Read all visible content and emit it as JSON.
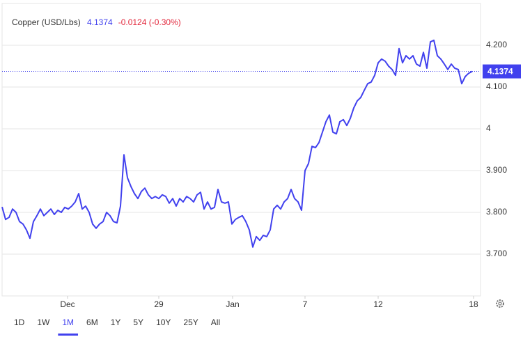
{
  "chart_data": {
    "type": "line",
    "title": "Copper (USD/Lbs)",
    "quote": {
      "price": "4.1374",
      "change": "-0.0124 (-0.30%)"
    },
    "x": [
      0,
      1,
      2,
      3,
      4,
      5,
      6,
      7,
      8,
      9,
      10,
      11,
      12,
      13,
      14,
      15,
      16,
      17,
      18,
      19,
      20,
      21,
      22,
      23,
      24,
      25,
      26,
      27,
      28,
      29,
      30,
      31,
      32,
      33,
      34,
      35,
      36,
      37,
      38,
      39,
      40,
      41,
      42,
      43,
      44,
      45,
      46,
      47,
      48,
      49,
      50,
      51,
      52,
      53,
      54,
      55,
      56,
      57,
      58,
      59,
      60,
      61,
      62,
      63,
      64,
      65,
      66,
      67,
      68,
      69,
      70,
      71,
      72,
      73,
      74,
      75,
      76,
      77,
      78,
      79,
      80,
      81,
      82,
      83,
      84,
      85,
      86,
      87,
      88,
      89,
      90,
      91,
      92,
      93,
      94,
      95,
      96,
      97,
      98,
      99,
      100,
      101,
      102,
      103,
      104,
      105,
      106,
      107,
      108,
      109,
      110,
      111,
      112,
      113,
      114,
      115,
      116,
      117,
      118,
      119,
      120,
      121,
      122,
      123,
      124,
      125,
      126,
      127,
      128,
      129,
      130,
      131,
      132,
      133,
      134,
      135
    ],
    "series": [
      {
        "name": "Copper",
        "color": "#4141ee",
        "values": [
          3.813,
          3.783,
          3.788,
          3.808,
          3.8,
          3.778,
          3.772,
          3.758,
          3.738,
          3.778,
          3.792,
          3.808,
          3.792,
          3.8,
          3.808,
          3.795,
          3.805,
          3.8,
          3.812,
          3.808,
          3.815,
          3.825,
          3.845,
          3.808,
          3.815,
          3.8,
          3.772,
          3.762,
          3.772,
          3.778,
          3.8,
          3.792,
          3.778,
          3.775,
          3.815,
          3.938,
          3.883,
          3.862,
          3.845,
          3.833,
          3.85,
          3.858,
          3.842,
          3.833,
          3.838,
          3.833,
          3.842,
          3.838,
          3.822,
          3.833,
          3.815,
          3.833,
          3.825,
          3.838,
          3.833,
          3.825,
          3.842,
          3.848,
          3.808,
          3.825,
          3.808,
          3.812,
          3.855,
          3.825,
          3.822,
          3.825,
          3.772,
          3.783,
          3.788,
          3.792,
          3.778,
          3.758,
          3.717,
          3.742,
          3.733,
          3.745,
          3.742,
          3.758,
          3.808,
          3.817,
          3.808,
          3.825,
          3.833,
          3.855,
          3.833,
          3.825,
          3.805,
          3.9,
          3.917,
          3.958,
          3.955,
          3.967,
          3.992,
          4.017,
          4.033,
          3.992,
          3.988,
          4.017,
          4.022,
          4.008,
          4.025,
          4.05,
          4.067,
          4.075,
          4.092,
          4.108,
          4.112,
          4.128,
          4.158,
          4.167,
          4.162,
          4.15,
          4.142,
          4.128,
          4.192,
          4.158,
          4.175,
          4.167,
          4.175,
          4.155,
          4.15,
          4.183,
          4.145,
          4.208,
          4.212,
          4.175,
          4.167,
          4.155,
          4.142,
          4.155,
          4.145,
          4.142,
          4.108,
          4.125,
          4.133,
          4.1374
        ]
      }
    ],
    "xlim": [
      0,
      137.4
    ],
    "xticks": [
      {
        "value": 18.8,
        "label": "Dec"
      },
      {
        "value": 45,
        "label": "29"
      },
      {
        "value": 66.2,
        "label": "Jan"
      },
      {
        "value": 87,
        "label": "7"
      },
      {
        "value": 108,
        "label": "12"
      },
      {
        "value": 135.4,
        "label": "18"
      }
    ],
    "ylim": [
      3.6,
      4.3
    ],
    "yticks": [
      {
        "value": 3.7,
        "label": "3.700"
      },
      {
        "value": 3.8,
        "label": "3.800"
      },
      {
        "value": 3.9,
        "label": "3.900"
      },
      4,
      {
        "value": 4.1,
        "label": "4.100"
      },
      {
        "value": 4.2,
        "label": "4.200"
      }
    ],
    "grid": true,
    "ranges": [
      "1D",
      "1W",
      "1M",
      "6M",
      "1Y",
      "5Y",
      "10Y",
      "25Y",
      "All"
    ],
    "selected_range": "1M"
  }
}
